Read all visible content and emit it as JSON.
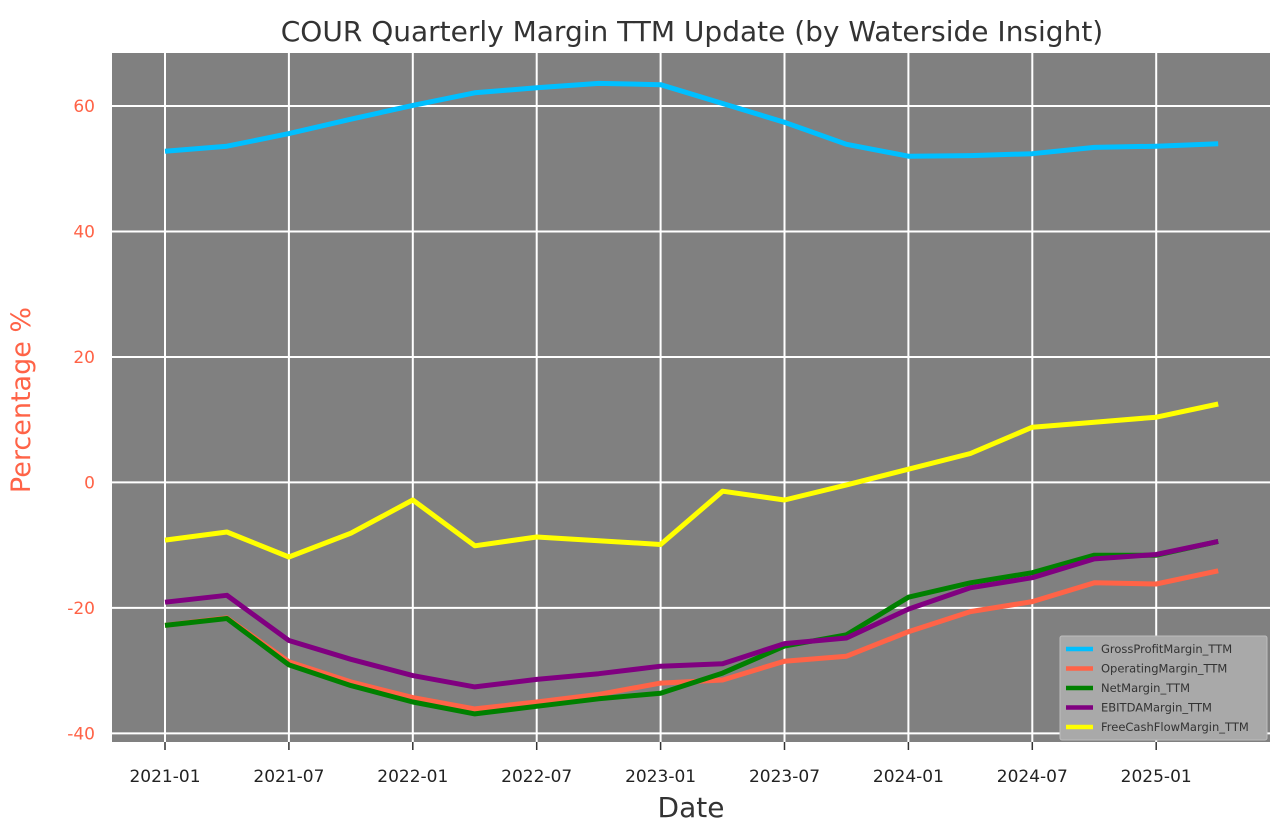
{
  "chart_data": {
    "type": "line",
    "title": "COUR Quarterly Margin TTM Update (by Waterside Insight)",
    "xlabel": "Date",
    "ylabel": "Percentage %",
    "x": [
      "2021-01",
      "2021-04",
      "2021-07",
      "2021-10",
      "2022-01",
      "2022-04",
      "2022-07",
      "2022-10",
      "2023-01",
      "2023-04",
      "2023-07",
      "2023-10",
      "2024-01",
      "2024-04",
      "2024-07",
      "2024-10",
      "2025-01",
      "2025-04"
    ],
    "x_tick_labels": [
      "2021-01",
      "2021-07",
      "2022-01",
      "2022-07",
      "2023-01",
      "2023-07",
      "2024-01",
      "2024-07",
      "2025-01"
    ],
    "x_tick_positions": [
      "2021-01",
      "2021-07",
      "2022-01",
      "2022-07",
      "2023-01",
      "2023-07",
      "2024-01",
      "2024-07",
      "2025-01"
    ],
    "y_ticks": [
      -40,
      -20,
      0,
      20,
      40,
      60
    ],
    "ylim": [
      -41.5,
      67.5
    ],
    "grid": true,
    "legend_position": "lower-right",
    "series": [
      {
        "name": "GrossProfitMargin_TTM",
        "color": "#00bfff",
        "values": [
          52.8,
          53.6,
          55.6,
          57.9,
          60.1,
          62.1,
          62.9,
          63.6,
          63.4,
          60.4,
          57.4,
          53.9,
          52.0,
          52.1,
          52.4,
          53.4,
          53.6,
          54.0
        ]
      },
      {
        "name": "OperatingMargin_TTM",
        "color": "#ff6347",
        "values": [
          -22.8,
          -21.6,
          -28.6,
          -31.8,
          -34.3,
          -36.1,
          -35.0,
          -33.8,
          -32.0,
          -31.5,
          -28.5,
          -27.7,
          -23.8,
          -20.6,
          -19.0,
          -16.0,
          -16.2,
          -14.1
        ]
      },
      {
        "name": "NetMargin_TTM",
        "color": "#008000",
        "values": [
          -22.8,
          -21.7,
          -29.1,
          -32.4,
          -35.0,
          -36.9,
          -35.7,
          -34.5,
          -33.6,
          -30.4,
          -26.1,
          -24.3,
          -18.3,
          -16.0,
          -14.4,
          -11.6,
          -11.6,
          -9.4
        ]
      },
      {
        "name": "EBITDAMargin_TTM",
        "color": "#800080",
        "values": [
          -19.1,
          -18.0,
          -25.2,
          -28.2,
          -30.8,
          -32.6,
          -31.4,
          -30.5,
          -29.3,
          -28.9,
          -25.7,
          -24.8,
          -20.2,
          -16.8,
          -15.2,
          -12.2,
          -11.5,
          -9.4
        ]
      },
      {
        "name": "FreeCashFlowMargin_TTM",
        "color": "#ffff00",
        "values": [
          -9.2,
          -7.9,
          -11.9,
          -8.1,
          -2.8,
          -10.1,
          -8.7,
          -9.3,
          -9.9,
          -1.4,
          -2.8,
          -0.4,
          2.1,
          4.6,
          8.8,
          9.6,
          10.4,
          12.5
        ]
      }
    ]
  },
  "style": {
    "plot_background": "#808080",
    "grid_color": "#ffffff",
    "axis_accent": "#ff6347",
    "legend_background": "#a9a9a9"
  }
}
